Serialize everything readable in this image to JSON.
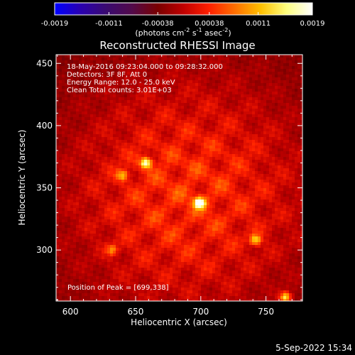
{
  "colorbar": {
    "ticks": [
      "-0.0019",
      "-0.0011",
      "-0.00038",
      "0.00038",
      "0.0011",
      "0.0019"
    ],
    "tick_values": [
      -0.0019,
      -0.0011,
      -0.00038,
      0.00038,
      0.0011,
      0.0019
    ],
    "range": [
      -0.0019,
      0.0019
    ],
    "unit_base": "(photons cm",
    "unit_exp1": "-2",
    "unit_mid": " s",
    "unit_exp2": "-1",
    "unit_mid2": " asec",
    "unit_exp3": "-2",
    "unit_end": ")"
  },
  "chart_data": {
    "type": "heatmap",
    "title": "Reconstructed RHESSI Image",
    "xlabel": "Heliocentric X (arcsec)",
    "ylabel": "Heliocentric Y (arcsec)",
    "xlim": [
      589,
      778
    ],
    "ylim": [
      259,
      457
    ],
    "x_ticks": [
      600,
      650,
      700,
      750
    ],
    "y_ticks": [
      300,
      350,
      400,
      450
    ],
    "colormap": [
      "#0000ff",
      "#2a00b0",
      "#3a0a70",
      "#520a4a",
      "#7a0000",
      "#c00000",
      "#ff2000",
      "#ff7000",
      "#ffc000",
      "#ffff80",
      "#ffffff"
    ],
    "annotations": [
      "18-May-2016 09:23:04.000 to 09:28:32.000",
      "Detectors: 3F 8F, Att 0",
      "Energy Range: 12.0 - 25.0 keV",
      "Clean     Total counts: 3.01E+03"
    ],
    "peak_label": "Position of Peak = [699,338]",
    "peaks": [
      {
        "x": 699,
        "y": 338,
        "value": 0.0019
      },
      {
        "x": 658,
        "y": 370,
        "value": 0.0016
      },
      {
        "x": 765,
        "y": 262,
        "value": 0.0015
      },
      {
        "x": 742,
        "y": 308,
        "value": 0.0012
      },
      {
        "x": 640,
        "y": 360,
        "value": 0.0009
      },
      {
        "x": 632,
        "y": 300,
        "value": 0.0008
      }
    ]
  },
  "footer": {
    "date": "5-Sep-2022 15:34"
  }
}
